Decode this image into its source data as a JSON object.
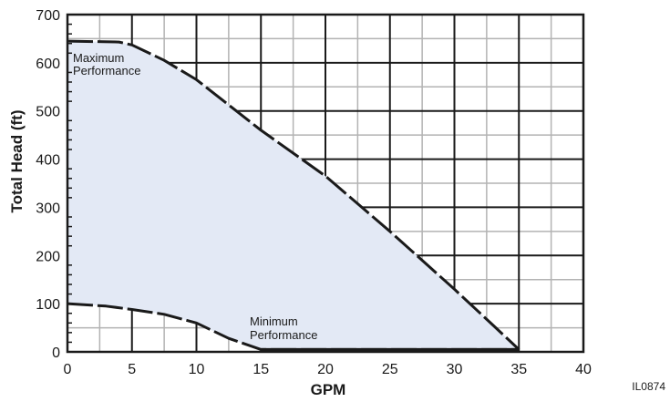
{
  "chart_data": {
    "type": "area",
    "xlabel": "GPM",
    "ylabel": "Total Head (ft)",
    "xlim": [
      0,
      40
    ],
    "ylim": [
      0,
      700
    ],
    "x_ticks": [
      0,
      5,
      10,
      15,
      20,
      25,
      30,
      35,
      40
    ],
    "y_ticks": [
      0,
      100,
      200,
      300,
      400,
      500,
      600,
      700
    ],
    "grid": true,
    "fill_color": "#e3e9f5",
    "line_color": "#1a1a1a",
    "series": [
      {
        "name": "Maximum Performance",
        "x": [
          0,
          4,
          5,
          7.5,
          10,
          15,
          20,
          25,
          30,
          33,
          35
        ],
        "y": [
          645,
          643,
          637,
          605,
          565,
          460,
          365,
          250,
          130,
          55,
          5
        ]
      },
      {
        "name": "Minimum Performance",
        "x": [
          0,
          3,
          5,
          7.5,
          10,
          12.5,
          15,
          20,
          25,
          30,
          35
        ],
        "y": [
          100,
          95,
          88,
          78,
          60,
          28,
          5,
          5,
          5,
          5,
          5
        ]
      }
    ],
    "annotations": {
      "max_line1": "Maximum",
      "max_line2": "Performance",
      "min_line1": "Minimum",
      "min_line2": "Performance"
    },
    "figure_code": "IL0874"
  }
}
